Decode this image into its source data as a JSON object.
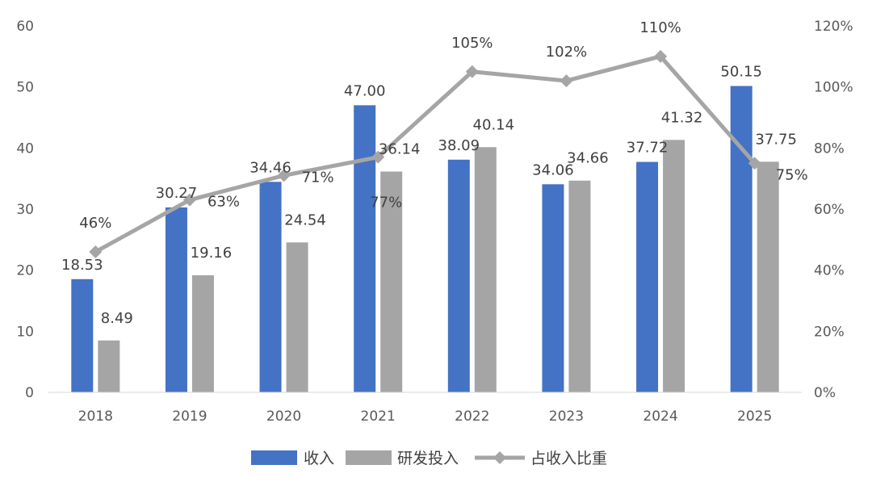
{
  "chart_data": {
    "type": "bar",
    "categories": [
      "2018",
      "2019",
      "2020",
      "2021",
      "2022",
      "2023",
      "2024",
      "2025"
    ],
    "series": [
      {
        "name": "收入",
        "type": "bar",
        "axis": "left",
        "color": "#4472C4",
        "values": [
          18.53,
          30.27,
          34.46,
          47.0,
          38.09,
          34.06,
          37.72,
          50.15
        ],
        "labels": [
          "18.53",
          "30.27",
          "34.46",
          "47.00",
          "38.09",
          "34.06",
          "37.72",
          "50.15"
        ]
      },
      {
        "name": "研发投入",
        "type": "bar",
        "axis": "left",
        "color": "#A5A5A5",
        "values": [
          8.49,
          19.16,
          24.54,
          36.14,
          40.14,
          34.66,
          41.32,
          37.75
        ],
        "labels": [
          "8.49",
          "19.16",
          "24.54",
          "36.14",
          "40.14",
          "34.66",
          "41.32",
          "37.75"
        ]
      },
      {
        "name": "占收入比重",
        "type": "line",
        "axis": "right",
        "color": "#A5A5A5",
        "marker": "diamond",
        "values": [
          46,
          63,
          71,
          77,
          105,
          102,
          110,
          75
        ],
        "labels": [
          "46%",
          "63%",
          "71%",
          "77%",
          "105%",
          "102%",
          "110%",
          "75%"
        ]
      }
    ],
    "y_left": {
      "min": 0,
      "max": 60,
      "ticks": [
        "0",
        "10",
        "20",
        "30",
        "40",
        "50",
        "60"
      ]
    },
    "y_right": {
      "min": 0,
      "max": 120,
      "ticks": [
        "0%",
        "20%",
        "40%",
        "60%",
        "80%",
        "100%",
        "120%"
      ]
    },
    "grid": false,
    "legend_position": "bottom"
  }
}
